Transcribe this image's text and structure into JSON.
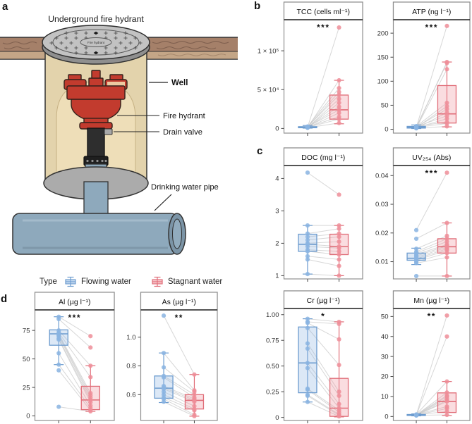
{
  "figure": {
    "panel_labels": {
      "a": "a",
      "b": "b",
      "c": "c",
      "d": "d"
    },
    "diagram": {
      "title": "Underground fire hydrant",
      "cover_text": "Fire hydrant",
      "labels": {
        "well": "Well",
        "fire_hydrant": "Fire hydrant",
        "drain_valve": "Drain valve",
        "drinking_water_pipe": "Drinking water pipe"
      }
    },
    "legend": {
      "title": "Type",
      "items": [
        {
          "label": "Flowing water",
          "color": "#8ab4e2"
        },
        {
          "label": "Stagnant water",
          "color": "#ef8e99"
        }
      ]
    }
  },
  "colors": {
    "flowing": "#8ab4e2",
    "flowing_stroke": "#6d9ccf",
    "stagnant": "#ef8e99",
    "stagnant_stroke": "#e06c77",
    "pair_line": "#c9c9c9",
    "panel_border": "#8f8f8f"
  },
  "chart_data": [
    {
      "panel": "b",
      "type": "paired-boxplot-scatter",
      "title": "TCC (cells ml⁻¹)",
      "significance": "***",
      "ylim": [
        -6000,
        140000
      ],
      "yticks": [
        {
          "v": 0,
          "label": "0"
        },
        {
          "v": 50000,
          "label": "5 × 10⁴"
        },
        {
          "v": 100000,
          "label": "1 × 10⁵"
        }
      ],
      "series": [
        {
          "name": "Flowing water",
          "box": {
            "low": 400,
            "q1": 900,
            "med": 1500,
            "q3": 2300,
            "high": 3800
          },
          "points": [
            1500,
            1200,
            2500,
            1800,
            2200,
            1000,
            1400,
            1600,
            2000,
            1100,
            1700,
            1300,
            900
          ]
        },
        {
          "name": "Stagnant water",
          "box": {
            "low": 6000,
            "q1": 12000,
            "med": 24000,
            "q3": 43000,
            "high": 62000
          },
          "points": [
            130000,
            62000,
            52000,
            47000,
            43000,
            38000,
            33000,
            28000,
            24000,
            20000,
            15000,
            12000,
            7000
          ]
        }
      ]
    },
    {
      "panel": "b",
      "type": "paired-boxplot-scatter",
      "title": "ATP (ng l⁻¹)",
      "significance": "***",
      "ylim": [
        -8,
        228
      ],
      "yticks": [
        {
          "v": 0,
          "label": "0"
        },
        {
          "v": 50,
          "label": "50"
        },
        {
          "v": 100,
          "label": "100"
        },
        {
          "v": 150,
          "label": "150"
        },
        {
          "v": 200,
          "label": "200"
        }
      ],
      "series": [
        {
          "name": "Flowing water",
          "box": {
            "low": 1.5,
            "q1": 2.5,
            "med": 4,
            "q3": 6,
            "high": 9
          },
          "points": [
            4,
            3,
            5,
            2.5,
            6,
            3.5,
            4.5,
            2,
            5.5,
            3,
            6.5,
            4,
            2.2
          ]
        },
        {
          "name": "Stagnant water",
          "box": {
            "low": 5,
            "q1": 13,
            "med": 32,
            "q3": 91,
            "high": 140
          },
          "points": [
            215,
            140,
            138,
            125,
            55,
            48,
            42,
            35,
            28,
            22,
            15,
            12,
            6
          ]
        }
      ]
    },
    {
      "panel": "c",
      "type": "paired-boxplot-scatter",
      "title": "DOC (mg l⁻¹)",
      "significance": "",
      "ylim": [
        0.9,
        4.4
      ],
      "yticks": [
        {
          "v": 1,
          "label": "1"
        },
        {
          "v": 2,
          "label": "2"
        },
        {
          "v": 3,
          "label": "3"
        },
        {
          "v": 4,
          "label": "4"
        }
      ],
      "series": [
        {
          "name": "Flowing water",
          "box": {
            "low": 1.05,
            "q1": 1.75,
            "med": 1.97,
            "q3": 2.28,
            "high": 2.55
          },
          "points": [
            4.18,
            2.55,
            2.3,
            2.2,
            2.1,
            2.0,
            1.97,
            1.9,
            1.8,
            1.75,
            1.6,
            1.5,
            1.05
          ]
        },
        {
          "name": "Stagnant water",
          "box": {
            "low": 1.0,
            "q1": 1.65,
            "med": 1.9,
            "q3": 2.28,
            "high": 2.55
          },
          "points": [
            3.5,
            2.55,
            2.45,
            2.3,
            2.2,
            2.05,
            1.9,
            1.85,
            1.75,
            1.65,
            1.5,
            1.3,
            1.0
          ]
        }
      ]
    },
    {
      "panel": "c",
      "type": "paired-boxplot-scatter",
      "title": "UV₂₅₄ (Abs)",
      "significance": "***",
      "ylim": [
        0.004,
        0.0435
      ],
      "yticks": [
        {
          "v": 0.01,
          "label": "0.01"
        },
        {
          "v": 0.02,
          "label": "0.02"
        },
        {
          "v": 0.03,
          "label": "0.03"
        },
        {
          "v": 0.04,
          "label": "0.04"
        }
      ],
      "series": [
        {
          "name": "Flowing water",
          "box": {
            "low": 0.009,
            "q1": 0.0105,
            "med": 0.0112,
            "q3": 0.013,
            "high": 0.0147
          },
          "points": [
            0.021,
            0.018,
            0.0145,
            0.0135,
            0.013,
            0.0125,
            0.012,
            0.0115,
            0.011,
            0.0105,
            0.01,
            0.0095,
            0.005
          ]
        },
        {
          "name": "Stagnant water",
          "box": {
            "low": 0.005,
            "q1": 0.013,
            "med": 0.0152,
            "q3": 0.018,
            "high": 0.0235
          },
          "points": [
            0.041,
            0.0235,
            0.019,
            0.018,
            0.017,
            0.016,
            0.0155,
            0.015,
            0.0145,
            0.014,
            0.013,
            0.0115,
            0.005
          ]
        }
      ]
    },
    {
      "panel": "c",
      "type": "paired-boxplot-scatter",
      "title": "Cr (µg l⁻¹)",
      "significance": "*",
      "ylim": [
        -0.03,
        1.06
      ],
      "yticks": [
        {
          "v": 0,
          "label": "0"
        },
        {
          "v": 0.25,
          "label": "0.25"
        },
        {
          "v": 0.5,
          "label": "0.50"
        },
        {
          "v": 0.75,
          "label": "0.75"
        },
        {
          "v": 1.0,
          "label": "1.00"
        }
      ],
      "series": [
        {
          "name": "Flowing water",
          "box": {
            "low": 0.15,
            "q1": 0.24,
            "med": 0.53,
            "q3": 0.88,
            "high": 0.96
          },
          "points": [
            0.96,
            0.93,
            0.92,
            0.87,
            0.72,
            0.67,
            0.53,
            0.48,
            0.28,
            0.27,
            0.22,
            0.21,
            0.15
          ]
        },
        {
          "name": "Stagnant water",
          "box": {
            "low": 0.005,
            "q1": 0.01,
            "med": 0.09,
            "q3": 0.38,
            "high": 0.93
          },
          "points": [
            0.93,
            0.91,
            0.76,
            0.51,
            0.25,
            0.21,
            0.13,
            0.09,
            0.07,
            0.05,
            0.03,
            0.02,
            0.01
          ]
        }
      ]
    },
    {
      "panel": "c",
      "type": "paired-boxplot-scatter",
      "title": "Mn (µg l⁻¹)",
      "significance": "**",
      "ylim": [
        -2,
        54
      ],
      "yticks": [
        {
          "v": 0,
          "label": "0"
        },
        {
          "v": 10,
          "label": "10"
        },
        {
          "v": 20,
          "label": "20"
        },
        {
          "v": 30,
          "label": "30"
        },
        {
          "v": 40,
          "label": "40"
        },
        {
          "v": 50,
          "label": "50"
        }
      ],
      "series": [
        {
          "name": "Flowing water",
          "box": {
            "low": 0.3,
            "q1": 0.5,
            "med": 0.7,
            "q3": 1.0,
            "high": 1.3
          },
          "points": [
            0.8,
            0.6,
            1.0,
            0.7,
            0.9,
            0.5,
            0.8,
            0.7,
            0.6,
            0.9,
            0.7,
            0.8,
            0.6
          ]
        },
        {
          "name": "Stagnant water",
          "box": {
            "low": 0.5,
            "q1": 2,
            "med": 7.5,
            "q3": 11.8,
            "high": 17.5
          },
          "points": [
            50.5,
            40,
            17.5,
            12,
            10.5,
            10,
            9,
            8,
            7.5,
            5,
            4,
            2.5,
            0.8
          ]
        }
      ]
    },
    {
      "panel": "d",
      "type": "paired-boxplot-scatter",
      "title": "Al (µg l⁻¹)",
      "significance": "***",
      "ylim": [
        -4,
        93
      ],
      "yticks": [
        {
          "v": 0,
          "label": "0"
        },
        {
          "v": 25,
          "label": "25"
        },
        {
          "v": 50,
          "label": "50"
        },
        {
          "v": 75,
          "label": "75"
        }
      ],
      "series": [
        {
          "name": "Flowing water",
          "box": {
            "low": 45,
            "q1": 62,
            "med": 72,
            "q3": 75.5,
            "high": 87
          },
          "points": [
            87,
            85,
            75,
            73,
            72,
            71,
            70,
            68,
            67,
            55,
            45,
            40,
            8
          ]
        },
        {
          "name": "Stagnant water",
          "box": {
            "low": 4,
            "q1": 5.5,
            "med": 14,
            "q3": 26,
            "high": 44
          },
          "points": [
            70,
            60,
            44,
            34,
            20,
            18,
            16,
            14,
            12,
            9,
            7,
            5,
            4
          ]
        }
      ]
    },
    {
      "panel": "d",
      "type": "paired-boxplot-scatter",
      "title": "As (µg l⁻¹)",
      "significance": "**",
      "ylim": [
        0.42,
        1.19
      ],
      "yticks": [
        {
          "v": 0.6,
          "label": "0.6"
        },
        {
          "v": 0.8,
          "label": "0.8"
        },
        {
          "v": 1.0,
          "label": "1.0"
        }
      ],
      "series": [
        {
          "name": "Flowing water",
          "box": {
            "low": 0.545,
            "q1": 0.575,
            "med": 0.645,
            "q3": 0.73,
            "high": 0.89
          },
          "points": [
            1.15,
            0.89,
            0.79,
            0.73,
            0.72,
            0.66,
            0.65,
            0.64,
            0.62,
            0.6,
            0.58,
            0.57,
            0.55
          ]
        },
        {
          "name": "Stagnant water",
          "box": {
            "low": 0.45,
            "q1": 0.5,
            "med": 0.56,
            "q3": 0.6,
            "high": 0.74
          },
          "points": [
            0.74,
            0.63,
            0.62,
            0.6,
            0.58,
            0.57,
            0.56,
            0.55,
            0.52,
            0.5,
            0.49,
            0.46,
            0.45
          ]
        }
      ]
    }
  ]
}
